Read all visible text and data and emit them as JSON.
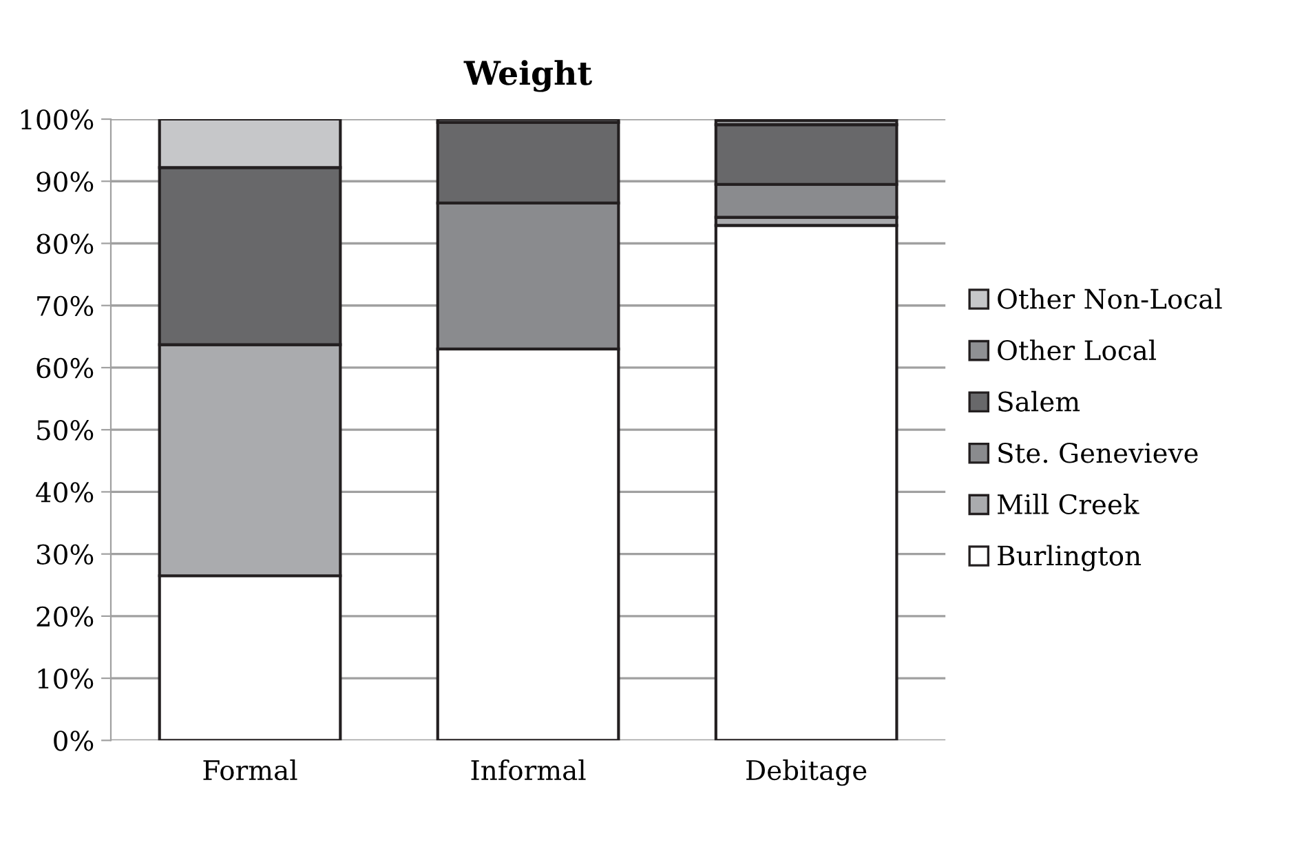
{
  "chart_data": {
    "type": "bar",
    "title": "Weight",
    "stacked": true,
    "categories": [
      "Formal",
      "Informal",
      "Debitage"
    ],
    "series": [
      {
        "name": "Burlington",
        "color": "#ffffff",
        "values": [
          26.5,
          63.0,
          82.9
        ]
      },
      {
        "name": "Mill Creek",
        "color": "#aaabae",
        "values": [
          37.2,
          0,
          1.3
        ]
      },
      {
        "name": "Ste. Genevieve",
        "color": "#8a8b8e",
        "values": [
          0,
          23.5,
          5.3
        ]
      },
      {
        "name": "Salem",
        "color": "#68686a",
        "values": [
          28.5,
          13.0,
          9.6
        ]
      },
      {
        "name": "Other Local",
        "color": "#8f9093",
        "values": [
          0,
          0.5,
          0.7
        ]
      },
      {
        "name": "Other Non-Local",
        "color": "#c6c7c9",
        "values": [
          7.8,
          0,
          null
        ]
      }
    ],
    "ylim": [
      0,
      100
    ],
    "yticks": [
      {
        "value": 0,
        "label": "0%"
      },
      {
        "value": 10,
        "label": "10%"
      },
      {
        "value": 20,
        "label": "20%"
      },
      {
        "value": 30,
        "label": "30%"
      },
      {
        "value": 40,
        "label": "40%"
      },
      {
        "value": 50,
        "label": "50%"
      },
      {
        "value": 60,
        "label": "60%"
      },
      {
        "value": 70,
        "label": "70%"
      },
      {
        "value": 80,
        "label": "80%"
      },
      {
        "value": 90,
        "label": "90%"
      },
      {
        "value": 100,
        "label": "100%"
      }
    ],
    "grid": "y",
    "legend": "right"
  }
}
